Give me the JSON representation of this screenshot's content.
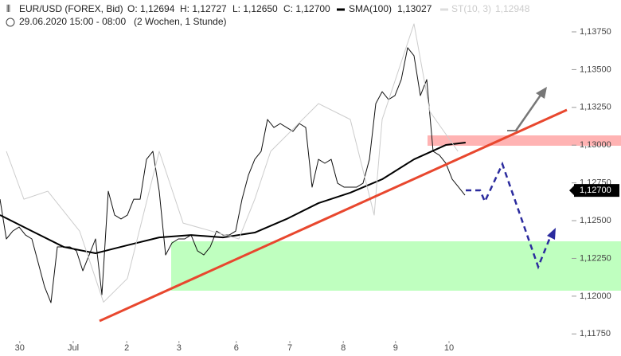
{
  "chart_data": {
    "type": "line",
    "title": "EUR/USD (FOREX, Bid)",
    "ohlc": {
      "open": "O: 1,12694",
      "high": "H: 1,12727",
      "low": "L: 1,12650",
      "close": "C: 1,12700"
    },
    "subtitle": "29.06.2020 15:00 - 08:00",
    "period": "(2 Wochen, 1 Stunde)",
    "xlim": [
      0,
      89.375
    ],
    "xticks": [
      {
        "value": 3.1,
        "label": "30"
      },
      {
        "value": 11.5,
        "label": "Jul"
      },
      {
        "value": 19.9,
        "label": "2"
      },
      {
        "value": 28.1,
        "label": "3"
      },
      {
        "value": 37.1,
        "label": "6"
      },
      {
        "value": 45.5,
        "label": "7"
      },
      {
        "value": 53.9,
        "label": "8"
      },
      {
        "value": 62.1,
        "label": "9"
      },
      {
        "value": 70.5,
        "label": "10"
      }
    ],
    "ylim": [
      1.11704,
      1.13961
    ],
    "yticks": [
      {
        "value": 1.1175,
        "label": "1,11750"
      },
      {
        "value": 1.12,
        "label": "1,12000"
      },
      {
        "value": 1.1225,
        "label": "1,12250"
      },
      {
        "value": 1.125,
        "label": "1,12500"
      },
      {
        "value": 1.1275,
        "label": "1,12750"
      },
      {
        "value": 1.13,
        "label": "1,13000"
      },
      {
        "value": 1.1325,
        "label": "1,13250"
      },
      {
        "value": 1.135,
        "label": "1,13500"
      },
      {
        "value": 1.1375,
        "label": "1,13750"
      }
    ],
    "last_price": {
      "value": 1.127,
      "label": "1,12700"
    },
    "series": [
      {
        "color": "#111111",
        "width": 1,
        "x": [
          0,
          1,
          2,
          3,
          4,
          5,
          6,
          7,
          8,
          9,
          10,
          11,
          12,
          13,
          14,
          15,
          16,
          17,
          18,
          19,
          20,
          21,
          22,
          23,
          24,
          25,
          26,
          27,
          28,
          29,
          30,
          31,
          32,
          33,
          34,
          35,
          36,
          37,
          38,
          39,
          40,
          41,
          42,
          43,
          44,
          45,
          46,
          47,
          48,
          49,
          50,
          51,
          52,
          53,
          54,
          55,
          56,
          57,
          58,
          59,
          60,
          61,
          62,
          63,
          64,
          65,
          66,
          67,
          68,
          69,
          70,
          71,
          72,
          73
        ],
        "values": [
          1.12642,
          1.12379,
          1.12431,
          1.12458,
          1.12405,
          1.12379,
          1.12221,
          1.12062,
          1.11957,
          1.12326,
          1.12326,
          1.12326,
          1.123,
          1.12168,
          1.12273,
          1.12379,
          1.1201,
          1.12695,
          1.12537,
          1.12511,
          1.12537,
          1.12642,
          1.12642,
          1.12906,
          1.12959,
          1.12695,
          1.12273,
          1.12352,
          1.12379,
          1.12379,
          1.12405,
          1.123,
          1.12273,
          1.12326,
          1.12431,
          1.12405,
          1.12405,
          1.12431,
          1.12642,
          1.12801,
          1.12906,
          1.12959,
          1.1317,
          1.13117,
          1.13143,
          1.13117,
          1.13091,
          1.13143,
          1.13117,
          1.12722,
          1.12906,
          1.1288,
          1.12906,
          1.12748,
          1.12722,
          1.12722,
          1.12722,
          1.12748,
          1.12906,
          1.13275,
          1.13354,
          1.13302,
          1.13328,
          1.13434,
          1.13645,
          1.13592,
          1.13328,
          1.13434,
          1.12959,
          1.12933,
          1.1288,
          1.12774,
          1.12722,
          1.12669
        ]
      },
      {
        "name": "SMA(100)",
        "value_label": "1,13027",
        "color": "#000000",
        "width": 2,
        "x": [
          0,
          5,
          10,
          15,
          20,
          25,
          30,
          35,
          40,
          45,
          50,
          55,
          60,
          65,
          70,
          73.1
        ],
        "values": [
          1.12537,
          1.12431,
          1.12326,
          1.12284,
          1.12337,
          1.12389,
          1.12405,
          1.12389,
          1.12421,
          1.12511,
          1.12616,
          1.12685,
          1.12774,
          1.12906,
          1.13001,
          1.13017
        ]
      },
      {
        "name": "ST(10, 3)",
        "value_label": "1,12948",
        "color": "#cccccc",
        "width": 1,
        "x": [
          1,
          3.75,
          7.5,
          12.5,
          16.25,
          20,
          25,
          28.75,
          37.5,
          40,
          42.5,
          50,
          55,
          58.75,
          60,
          65,
          67.5,
          71.9
        ],
        "values": [
          1.12959,
          1.12642,
          1.12695,
          1.12431,
          1.1196,
          1.12117,
          1.12959,
          1.12484,
          1.12379,
          1.12642,
          1.12959,
          1.13275,
          1.1317,
          1.12537,
          1.1317,
          1.13803,
          1.13222,
          1.12959
        ]
      }
    ]
  }
}
